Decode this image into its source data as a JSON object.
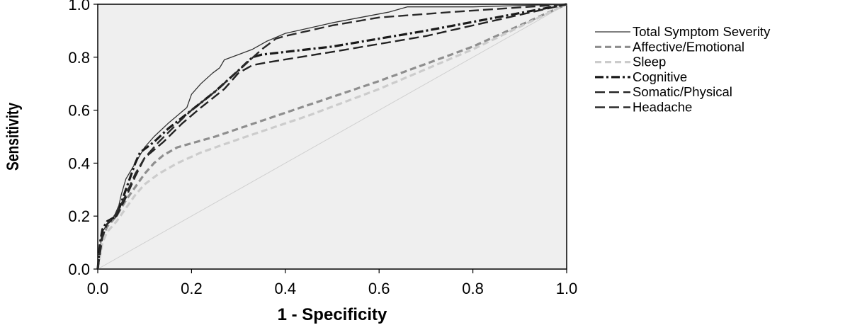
{
  "chart_data": {
    "type": "line",
    "title": "",
    "xlabel": "1 - Specificity",
    "ylabel": "Sensitivity",
    "xlim": [
      0,
      1
    ],
    "ylim": [
      0,
      1
    ],
    "xticks": [
      "0.0",
      "0.2",
      "0.4",
      "0.6",
      "0.8",
      "1.0"
    ],
    "yticks": [
      "0.0",
      "0.2",
      "0.4",
      "0.6",
      "0.8",
      "1.0"
    ],
    "grid": false,
    "legend_position": "right",
    "plot_background": "#efefef",
    "series": [
      {
        "name": "Total Symptom Severity",
        "color": "#333333",
        "style": "solid-thin",
        "points": [
          [
            0,
            0
          ],
          [
            0.005,
            0.08
          ],
          [
            0.01,
            0.14
          ],
          [
            0.02,
            0.17
          ],
          [
            0.035,
            0.2
          ],
          [
            0.045,
            0.24
          ],
          [
            0.05,
            0.28
          ],
          [
            0.06,
            0.34
          ],
          [
            0.08,
            0.4
          ],
          [
            0.1,
            0.46
          ],
          [
            0.12,
            0.5
          ],
          [
            0.15,
            0.55
          ],
          [
            0.17,
            0.58
          ],
          [
            0.19,
            0.61
          ],
          [
            0.2,
            0.66
          ],
          [
            0.22,
            0.7
          ],
          [
            0.245,
            0.74
          ],
          [
            0.26,
            0.76
          ],
          [
            0.27,
            0.79
          ],
          [
            0.3,
            0.81
          ],
          [
            0.33,
            0.83
          ],
          [
            0.36,
            0.86
          ],
          [
            0.4,
            0.89
          ],
          [
            0.45,
            0.91
          ],
          [
            0.5,
            0.93
          ],
          [
            0.56,
            0.95
          ],
          [
            0.62,
            0.97
          ],
          [
            0.66,
            0.99
          ],
          [
            0.8,
            0.99
          ],
          [
            1,
            1
          ]
        ]
      },
      {
        "name": "Affective/Emotional",
        "color": "#8e8e8e",
        "style": "dashed",
        "points": [
          [
            0,
            0
          ],
          [
            0.01,
            0.12
          ],
          [
            0.02,
            0.16
          ],
          [
            0.04,
            0.2
          ],
          [
            0.06,
            0.26
          ],
          [
            0.08,
            0.31
          ],
          [
            0.1,
            0.36
          ],
          [
            0.12,
            0.4
          ],
          [
            0.14,
            0.43
          ],
          [
            0.17,
            0.46
          ],
          [
            0.25,
            0.5
          ],
          [
            0.4,
            0.59
          ],
          [
            0.6,
            0.71
          ],
          [
            0.8,
            0.84
          ],
          [
            1,
            1
          ]
        ]
      },
      {
        "name": "Sleep",
        "color": "#cccccc",
        "style": "dashed",
        "points": [
          [
            0,
            0
          ],
          [
            0.01,
            0.1
          ],
          [
            0.02,
            0.14
          ],
          [
            0.04,
            0.18
          ],
          [
            0.06,
            0.23
          ],
          [
            0.08,
            0.28
          ],
          [
            0.1,
            0.32
          ],
          [
            0.13,
            0.36
          ],
          [
            0.17,
            0.4
          ],
          [
            0.22,
            0.44
          ],
          [
            0.3,
            0.49
          ],
          [
            0.45,
            0.58
          ],
          [
            0.6,
            0.68
          ],
          [
            0.8,
            0.83
          ],
          [
            1,
            1
          ]
        ]
      },
      {
        "name": "Cognitive",
        "color": "#1a1a1a",
        "style": "dashdot",
        "points": [
          [
            0,
            0
          ],
          [
            0.005,
            0.1
          ],
          [
            0.01,
            0.15
          ],
          [
            0.02,
            0.18
          ],
          [
            0.04,
            0.2
          ],
          [
            0.06,
            0.3
          ],
          [
            0.08,
            0.4
          ],
          [
            0.09,
            0.44
          ],
          [
            0.12,
            0.48
          ],
          [
            0.15,
            0.53
          ],
          [
            0.2,
            0.6
          ],
          [
            0.25,
            0.67
          ],
          [
            0.3,
            0.75
          ],
          [
            0.33,
            0.8
          ],
          [
            0.35,
            0.81
          ],
          [
            0.5,
            0.84
          ],
          [
            0.7,
            0.9
          ],
          [
            0.85,
            0.95
          ],
          [
            1,
            1
          ]
        ]
      },
      {
        "name": "Somatic/Physical",
        "color": "#222222",
        "style": "longdash",
        "points": [
          [
            0,
            0
          ],
          [
            0.005,
            0.09
          ],
          [
            0.01,
            0.13
          ],
          [
            0.02,
            0.17
          ],
          [
            0.04,
            0.2
          ],
          [
            0.06,
            0.27
          ],
          [
            0.08,
            0.35
          ],
          [
            0.1,
            0.42
          ],
          [
            0.14,
            0.48
          ],
          [
            0.18,
            0.55
          ],
          [
            0.22,
            0.61
          ],
          [
            0.27,
            0.68
          ],
          [
            0.3,
            0.74
          ],
          [
            0.33,
            0.77
          ],
          [
            0.36,
            0.78
          ],
          [
            0.5,
            0.82
          ],
          [
            0.7,
            0.88
          ],
          [
            0.85,
            0.94
          ],
          [
            1,
            1
          ]
        ]
      },
      {
        "name": "Headache",
        "color": "#2a2a2a",
        "style": "longdash",
        "points": [
          [
            0,
            0
          ],
          [
            0.005,
            0.06
          ],
          [
            0.01,
            0.12
          ],
          [
            0.02,
            0.17
          ],
          [
            0.04,
            0.21
          ],
          [
            0.06,
            0.28
          ],
          [
            0.08,
            0.36
          ],
          [
            0.1,
            0.42
          ],
          [
            0.13,
            0.48
          ],
          [
            0.17,
            0.55
          ],
          [
            0.2,
            0.6
          ],
          [
            0.25,
            0.67
          ],
          [
            0.3,
            0.75
          ],
          [
            0.35,
            0.83
          ],
          [
            0.38,
            0.87
          ],
          [
            0.4,
            0.88
          ],
          [
            0.5,
            0.92
          ],
          [
            0.6,
            0.95
          ],
          [
            0.75,
            0.97
          ],
          [
            1,
            1
          ]
        ]
      }
    ]
  }
}
